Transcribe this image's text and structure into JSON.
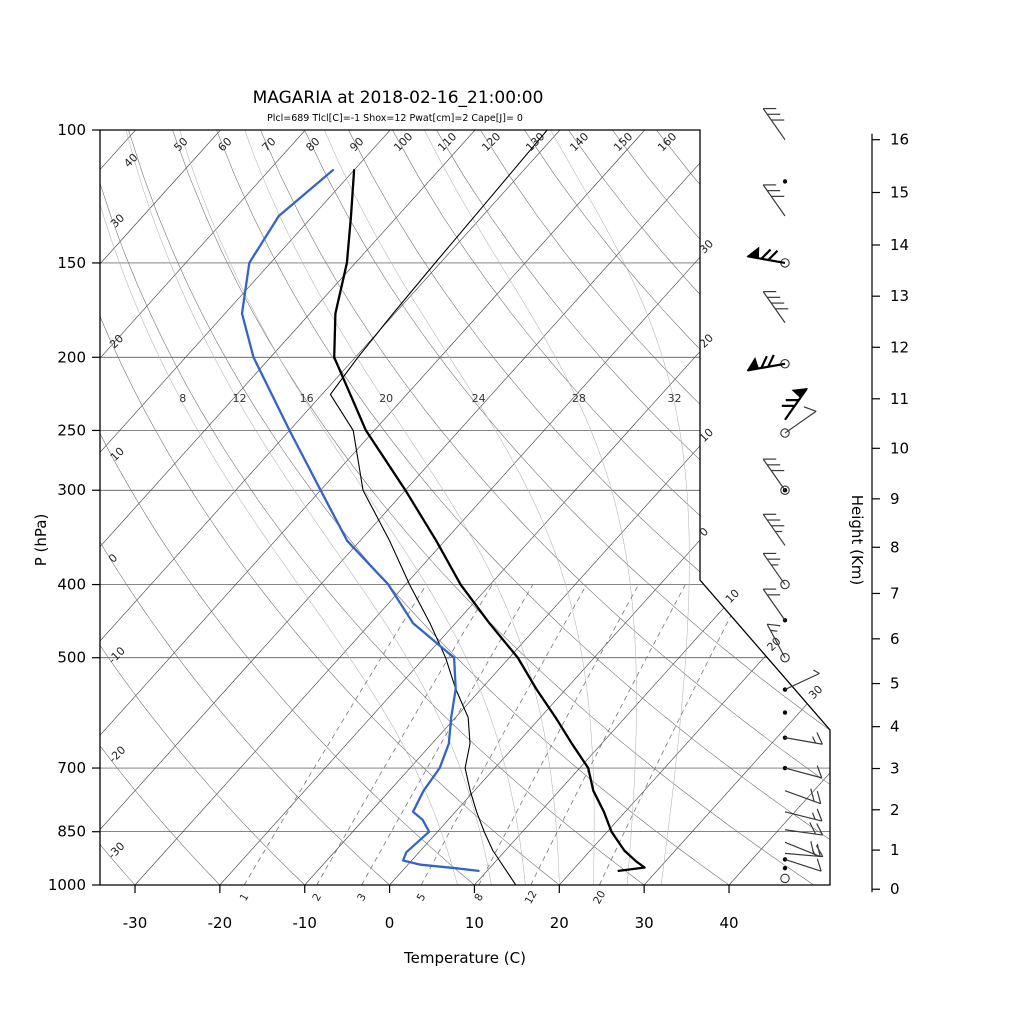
{
  "title": "MAGARIA at 2018-02-16_21:00:00",
  "params_line": "Plcl=689 Tlcl[C]=-1 Shox=12 Pwat[cm]=2 Cape[J]= 0",
  "axes": {
    "pressure_label": "P (hPa)",
    "temperature_label": "Temperature (C)",
    "height_label": "Height (Km)",
    "pressure_ticks": [
      100,
      150,
      200,
      250,
      300,
      400,
      500,
      700,
      850,
      1000
    ],
    "temperature_ticks": [
      -30,
      -20,
      -10,
      0,
      10,
      20,
      30,
      40
    ],
    "height_scale": [
      {
        "km": 16,
        "p": 103
      },
      {
        "km": 15,
        "p": 121
      },
      {
        "km": 14,
        "p": 142
      },
      {
        "km": 13,
        "p": 166
      },
      {
        "km": 12,
        "p": 194
      },
      {
        "km": 11,
        "p": 227
      },
      {
        "km": 10,
        "p": 264
      },
      {
        "km": 9,
        "p": 308
      },
      {
        "km": 8,
        "p": 357
      },
      {
        "km": 7,
        "p": 411
      },
      {
        "km": 6,
        "p": 472
      },
      {
        "km": 5,
        "p": 541
      },
      {
        "km": 4,
        "p": 617
      },
      {
        "km": 3,
        "p": 701
      },
      {
        "km": 2,
        "p": 795
      },
      {
        "km": 1,
        "p": 899
      },
      {
        "km": 0,
        "p": 1013
      }
    ]
  },
  "colors": {
    "temperature": "#000000",
    "dewpoint": "#3465c4",
    "parcel": "#000000",
    "params_text": "#b22222",
    "grid": "#3c3c3c"
  },
  "chart_data": {
    "type": "line",
    "title": "MAGARIA at 2018-02-16_21:00:00",
    "xlabel": "Temperature (C)",
    "ylabel": "P (hPa)",
    "x_range_c": [
      -30,
      40
    ],
    "pressure_range_hpa": [
      100,
      1000
    ],
    "background": {
      "isobars": [
        100,
        150,
        200,
        250,
        300,
        400,
        500,
        700,
        850,
        1000
      ],
      "isotherms_c": [
        -120,
        -110,
        -100,
        -90,
        -80,
        -70,
        -60,
        -50,
        -40,
        -30,
        -20,
        -10,
        0,
        10,
        20,
        30,
        40
      ],
      "dry_adiabats_c": [
        -30,
        -20,
        -10,
        0,
        10,
        20,
        30,
        40,
        50,
        60,
        70,
        80,
        90,
        100,
        110,
        120,
        130,
        140,
        150,
        160
      ],
      "top_adiabat_labels": [
        50,
        60,
        70,
        80,
        90,
        100,
        110,
        120,
        130,
        140,
        150,
        160
      ],
      "left_adiabat_labels": [
        40,
        30,
        20,
        10,
        0,
        -10,
        -20,
        -30
      ],
      "moist_adiabats_c": [
        8,
        12,
        16,
        20,
        24,
        28,
        32
      ],
      "mixing_ratio_gkg": [
        1,
        2,
        3,
        5,
        8,
        12,
        20
      ],
      "right_edge_labels": [
        {
          "label": "30",
          "t": -30
        },
        {
          "label": "20",
          "t": -20
        },
        {
          "label": "10",
          "t": -10
        },
        {
          "label": "0",
          "t": 0
        }
      ],
      "diagonal_edge_labels": [
        {
          "label": "10",
          "t": 10
        },
        {
          "label": "20",
          "t": 20
        },
        {
          "label": "30",
          "t": 30
        }
      ]
    },
    "temperature_profile": [
      [
        958,
        25.5
      ],
      [
        948,
        28.2
      ],
      [
        930,
        26.5
      ],
      [
        900,
        24.0
      ],
      [
        850,
        20.5
      ],
      [
        800,
        17.5
      ],
      [
        750,
        14.0
      ],
      [
        700,
        11.0
      ],
      [
        650,
        6.5
      ],
      [
        600,
        1.8
      ],
      [
        550,
        -3.5
      ],
      [
        500,
        -9.0
      ],
      [
        450,
        -16.0
      ],
      [
        400,
        -23.5
      ],
      [
        350,
        -31.0
      ],
      [
        300,
        -40.0
      ],
      [
        250,
        -51.0
      ],
      [
        200,
        -62.5
      ],
      [
        175,
        -67.0
      ],
      [
        150,
        -71.0
      ],
      [
        130,
        -75.5
      ],
      [
        113,
        -80.0
      ]
    ],
    "dewpoint_profile": [
      [
        958,
        9.0
      ],
      [
        950,
        6.0
      ],
      [
        940,
        1.5
      ],
      [
        928,
        -1.0
      ],
      [
        905,
        -1.5
      ],
      [
        850,
        -1.0
      ],
      [
        820,
        -3.0
      ],
      [
        800,
        -5.0
      ],
      [
        750,
        -6.0
      ],
      [
        700,
        -6.5
      ],
      [
        650,
        -8.0
      ],
      [
        600,
        -10.5
      ],
      [
        550,
        -13.0
      ],
      [
        500,
        -16.5
      ],
      [
        450,
        -25.0
      ],
      [
        400,
        -32.0
      ],
      [
        350,
        -41.5
      ],
      [
        300,
        -50.0
      ],
      [
        250,
        -60.0
      ],
      [
        200,
        -72.0
      ],
      [
        175,
        -78.0
      ],
      [
        150,
        -82.5
      ],
      [
        130,
        -84.0
      ],
      [
        113,
        -82.5
      ]
    ],
    "parcel_line": [
      [
        1002,
        15.0
      ],
      [
        900,
        8.5
      ],
      [
        850,
        5.5
      ],
      [
        800,
        2.5
      ],
      [
        750,
        -0.5
      ],
      [
        700,
        -3.5
      ],
      [
        650,
        -5.5
      ],
      [
        600,
        -8.5
      ],
      [
        550,
        -13.0
      ],
      [
        500,
        -17.5
      ],
      [
        450,
        -23.0
      ],
      [
        400,
        -29.5
      ],
      [
        350,
        -36.5
      ],
      [
        300,
        -45.0
      ],
      [
        250,
        -52.5
      ],
      [
        224,
        -59.0
      ],
      [
        200,
        -59.7
      ],
      [
        175,
        -60.2
      ],
      [
        150,
        -60.6
      ],
      [
        125,
        -61.0
      ],
      [
        100,
        -61.5
      ]
    ],
    "wind_barbs": [
      {
        "p": 103,
        "sym": "none",
        "ang": -35,
        "full": 3,
        "half": 0,
        "flag": 0,
        "bold": false
      },
      {
        "p": 117,
        "sym": "dot",
        "ang": 0,
        "full": 0,
        "half": 0,
        "flag": 0,
        "bold": false
      },
      {
        "p": 130,
        "sym": "none",
        "ang": -35,
        "full": 3,
        "half": 0,
        "flag": 0,
        "bold": false
      },
      {
        "p": 150,
        "sym": "circle",
        "ang": -80,
        "full": 2,
        "half": 0,
        "flag": 1,
        "bold": true
      },
      {
        "p": 180,
        "sym": "none",
        "ang": -35,
        "full": 4,
        "half": 0,
        "flag": 0,
        "bold": false
      },
      {
        "p": 204,
        "sym": "circle",
        "ang": -100,
        "full": 2,
        "half": 0,
        "flag": 1,
        "bold": true
      },
      {
        "p": 242,
        "sym": "none",
        "ang": 35,
        "full": 2,
        "half": 0,
        "flag": 1,
        "bold": true
      },
      {
        "p": 252,
        "sym": "circle",
        "ang": 55,
        "full": 1,
        "half": 0,
        "flag": 0,
        "bold": false
      },
      {
        "p": 300,
        "sym": "circledot",
        "ang": -35,
        "full": 3,
        "half": 0,
        "flag": 0,
        "bold": false
      },
      {
        "p": 355,
        "sym": "none",
        "ang": -35,
        "full": 3,
        "half": 1,
        "flag": 0,
        "bold": false
      },
      {
        "p": 400,
        "sym": "circle",
        "ang": -35,
        "full": 2,
        "half": 1,
        "flag": 0,
        "bold": false
      },
      {
        "p": 446,
        "sym": "dot",
        "ang": -35,
        "full": 2,
        "half": 0,
        "flag": 0,
        "bold": false
      },
      {
        "p": 500,
        "sym": "circle",
        "ang": -28,
        "full": 1,
        "half": 1,
        "flag": 0,
        "bold": false
      },
      {
        "p": 551,
        "sym": "dot",
        "ang": 65,
        "full": 0,
        "half": 1,
        "flag": 0,
        "bold": false
      },
      {
        "p": 591,
        "sym": "dot",
        "ang": 0,
        "full": 0,
        "half": 0,
        "flag": 0,
        "bold": false
      },
      {
        "p": 638,
        "sym": "dot",
        "ang": 100,
        "full": 1,
        "half": 1,
        "flag": 0,
        "bold": false
      },
      {
        "p": 700,
        "sym": "dot",
        "ang": 105,
        "full": 1,
        "half": 0,
        "flag": 0,
        "bold": false
      },
      {
        "p": 750,
        "sym": "none",
        "ang": 110,
        "full": 2,
        "half": 0,
        "flag": 0,
        "bold": false
      },
      {
        "p": 800,
        "sym": "none",
        "ang": 104,
        "full": 1,
        "half": 1,
        "flag": 0,
        "bold": false
      },
      {
        "p": 845,
        "sym": "none",
        "ang": 98,
        "full": 2,
        "half": 0,
        "flag": 0,
        "bold": false
      },
      {
        "p": 878,
        "sym": "none",
        "ang": 112,
        "full": 2,
        "half": 0,
        "flag": 0,
        "bold": false
      },
      {
        "p": 908,
        "sym": "none",
        "ang": 95,
        "full": 1,
        "half": 1,
        "flag": 0,
        "bold": false
      },
      {
        "p": 925,
        "sym": "dot",
        "ang": 108,
        "full": 1,
        "half": 0,
        "flag": 0,
        "bold": false
      },
      {
        "p": 950,
        "sym": "dot",
        "ang": 0,
        "full": 0,
        "half": 0,
        "flag": 0,
        "bold": false
      },
      {
        "p": 980,
        "sym": "circle",
        "ang": 0,
        "full": 0,
        "half": 0,
        "flag": 0,
        "bold": false
      }
    ]
  }
}
